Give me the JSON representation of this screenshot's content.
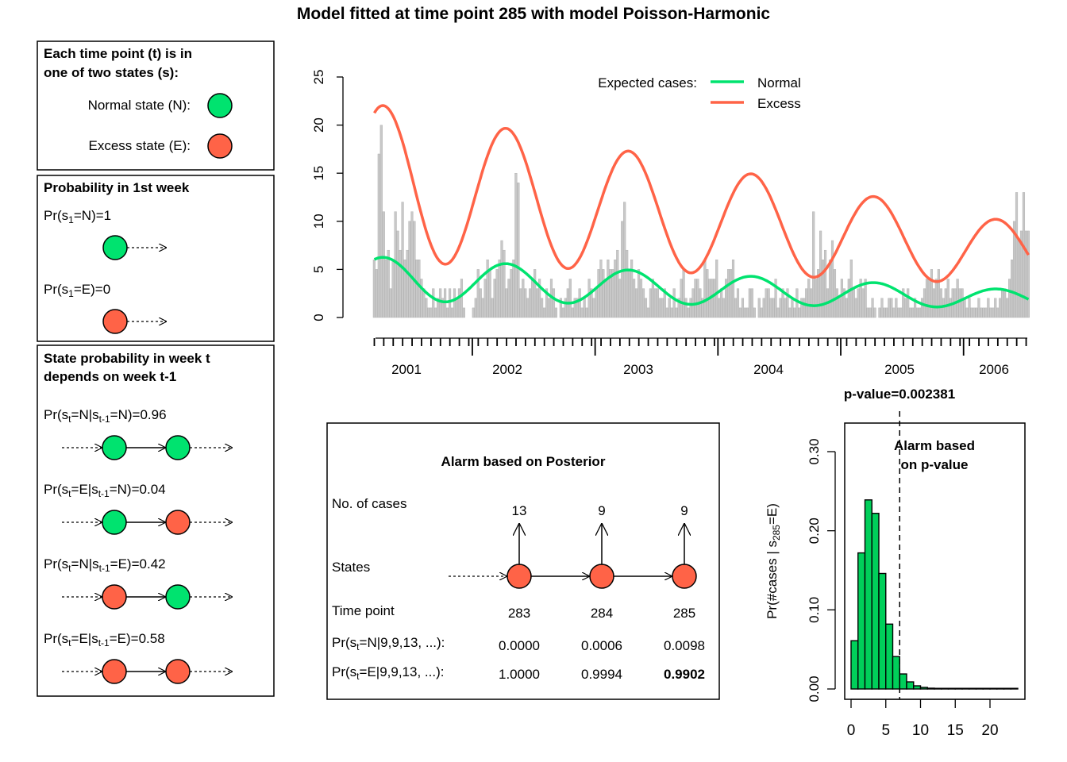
{
  "title": "Model fitted at time point 285 with model Poisson-Harmonic",
  "colors": {
    "normal": "#00E36F",
    "excess": "#FF6347",
    "bar": "#C8C8C8",
    "bar_border": "#AAAAAA",
    "hist": "#00CF5A"
  },
  "panels": {
    "states": {
      "heading_line1": "Each time point (t) is in",
      "heading_line2": "one of two states (s):",
      "normal_label": "Normal state (N):",
      "excess_label": "Excess state (E):"
    },
    "first_week": {
      "heading": "Probability in 1st week",
      "pr_n": {
        "pre": "Pr(s",
        "sub": "1",
        "post": "=N)=1"
      },
      "pr_e": {
        "pre": "Pr(s",
        "sub": "1",
        "post": "=E)=0"
      }
    },
    "transition": {
      "heading_line1": "State probability in week t",
      "heading_line2": "depends on week t-1",
      "rows": [
        {
          "a": "Pr(s",
          "s1": "t",
          "b": "=N|s",
          "s2": "t-1",
          "c": "=N)=0.96",
          "from": "normal",
          "to": "normal"
        },
        {
          "a": "Pr(s",
          "s1": "t",
          "b": "=E|s",
          "s2": "t-1",
          "c": "=N)=0.04",
          "from": "normal",
          "to": "excess"
        },
        {
          "a": "Pr(s",
          "s1": "t",
          "b": "=N|s",
          "s2": "t-1",
          "c": "=E)=0.42",
          "from": "excess",
          "to": "normal"
        },
        {
          "a": "Pr(s",
          "s1": "t",
          "b": "=E|s",
          "s2": "t-1",
          "c": "=E)=0.58",
          "from": "excess",
          "to": "excess"
        }
      ]
    },
    "alarm": {
      "title": "Alarm based on Posterior",
      "cases_label": "No. of cases",
      "states_label": "States",
      "time_label": "Time point",
      "prn_label": {
        "a": "Pr(s",
        "sub": "t",
        "b": "=N|9,9,13, ...):"
      },
      "pre_label": {
        "a": "Pr(s",
        "sub": "t",
        "b": "=E|9,9,13, ...):"
      },
      "columns": [
        {
          "cases": "13",
          "time": "283",
          "prn": "0.0000",
          "pre": "1.0000",
          "bold": false
        },
        {
          "cases": "9",
          "time": "284",
          "prn": "0.0006",
          "pre": "0.9994",
          "bold": false
        },
        {
          "cases": "9",
          "time": "285",
          "prn": "0.0098",
          "pre": "0.9902",
          "bold": true
        }
      ]
    }
  },
  "chart_data": [
    {
      "type": "bar",
      "title": "",
      "xlabel": "",
      "ylabel": "",
      "ylim": [
        0,
        25
      ],
      "y_ticks": [
        "0",
        "5",
        "10",
        "15",
        "20",
        "25"
      ],
      "x_year_labels": [
        "2001",
        "2002",
        "2003",
        "2004",
        "2005",
        "2006"
      ],
      "legend": {
        "title": "Expected cases:",
        "placement": "top-right",
        "entries": [
          "Normal",
          "Excess"
        ]
      },
      "counts": [
        6,
        5,
        17,
        20,
        11,
        6,
        7,
        3,
        6,
        11,
        9,
        7,
        12,
        6,
        7,
        10,
        11,
        10,
        6,
        6,
        4,
        3,
        2,
        1,
        1,
        3,
        1,
        2,
        3,
        2,
        3,
        1,
        3,
        1,
        3,
        2,
        3,
        4,
        1,
        0,
        0,
        0,
        1,
        2,
        5,
        3,
        2,
        4,
        6,
        5,
        2,
        4,
        5,
        6,
        8,
        7,
        3,
        4,
        5,
        6,
        15,
        14,
        3,
        4,
        3,
        2,
        3,
        4,
        5,
        3,
        4,
        2,
        1,
        3,
        2,
        4,
        3,
        1,
        0,
        2,
        1,
        2,
        3,
        4,
        1,
        2,
        2,
        3,
        1,
        2,
        1,
        4,
        3,
        2,
        3,
        5,
        6,
        5,
        4,
        6,
        5,
        5,
        6,
        7,
        4,
        10,
        12,
        7,
        5,
        6,
        4,
        3,
        5,
        4,
        3,
        2,
        1,
        3,
        4,
        3,
        3,
        2,
        2,
        3,
        1,
        2,
        1,
        3,
        1,
        2,
        4,
        5,
        2,
        1,
        2,
        3,
        4,
        4,
        3,
        2,
        6,
        5,
        4,
        4,
        4,
        6,
        2,
        3,
        2,
        4,
        5,
        5,
        6,
        2,
        3,
        1,
        2,
        1,
        1,
        3,
        3,
        1,
        0,
        2,
        1,
        2,
        3,
        3,
        2,
        2,
        4,
        1,
        2,
        3,
        2,
        3,
        1,
        2,
        1,
        3,
        1,
        2,
        2,
        3,
        4,
        3,
        11,
        4,
        5,
        9,
        6,
        7,
        3,
        6,
        8,
        5,
        3,
        2,
        4,
        3,
        2,
        4,
        6,
        3,
        2,
        3,
        4,
        3,
        4,
        1,
        1,
        2,
        1,
        0,
        1,
        2,
        1,
        1,
        2,
        2,
        1,
        2,
        1,
        1,
        3,
        2,
        3,
        1,
        1,
        2,
        1,
        1,
        2,
        3,
        4,
        4,
        5,
        3,
        4,
        5,
        3,
        2,
        3,
        4,
        2,
        3,
        3,
        4,
        3,
        3,
        2,
        1,
        2,
        1,
        1,
        1,
        2,
        1,
        1,
        1,
        2,
        1,
        1,
        2,
        1,
        2,
        3,
        3,
        2,
        4,
        6,
        10,
        13,
        8,
        9,
        13,
        9,
        9
      ],
      "time_points": [
        1,
        285
      ],
      "normal_expected": {
        "base_start": 4.0,
        "base_end": 1.9,
        "amplitude_start": 2.3,
        "amplitude_end": 0.9,
        "period": 52,
        "peak_time": 5
      },
      "excess_expected": {
        "base_start": 14.0,
        "base_end": 6.5,
        "amplitude_start": 8.2,
        "amplitude_end": 3.1,
        "period": 52,
        "peak_time": 5
      }
    },
    {
      "type": "bar",
      "title": "p-value=0.002381",
      "xlabel": "",
      "ylabel_main": "Pr(#cases | s",
      "ylabel_sub": "285",
      "ylabel_end": "=E)",
      "x_ticks": [
        "0",
        "5",
        "10",
        "15",
        "20"
      ],
      "y_ticks": [
        "0.00",
        "0.10",
        "0.20",
        "0.30"
      ],
      "xlim": [
        -0.5,
        24.5
      ],
      "ylim": [
        0,
        0.34
      ],
      "bin_starts": [
        0,
        1,
        2,
        3,
        4,
        5,
        6,
        7,
        8,
        9,
        10,
        11,
        12,
        13,
        14,
        15,
        16,
        17,
        18,
        19,
        20,
        21,
        22,
        23
      ],
      "values": [
        0.061,
        0.172,
        0.239,
        0.222,
        0.146,
        0.082,
        0.041,
        0.019,
        0.009,
        0.004,
        0.002,
        0.001,
        0.0005,
        0.0003,
        0.0002,
        0.0001,
        0.0001,
        0,
        0,
        0,
        0,
        0,
        0,
        0
      ],
      "threshold_x": 7,
      "annotation_line1": "Alarm based",
      "annotation_line2": "on p-value"
    }
  ]
}
